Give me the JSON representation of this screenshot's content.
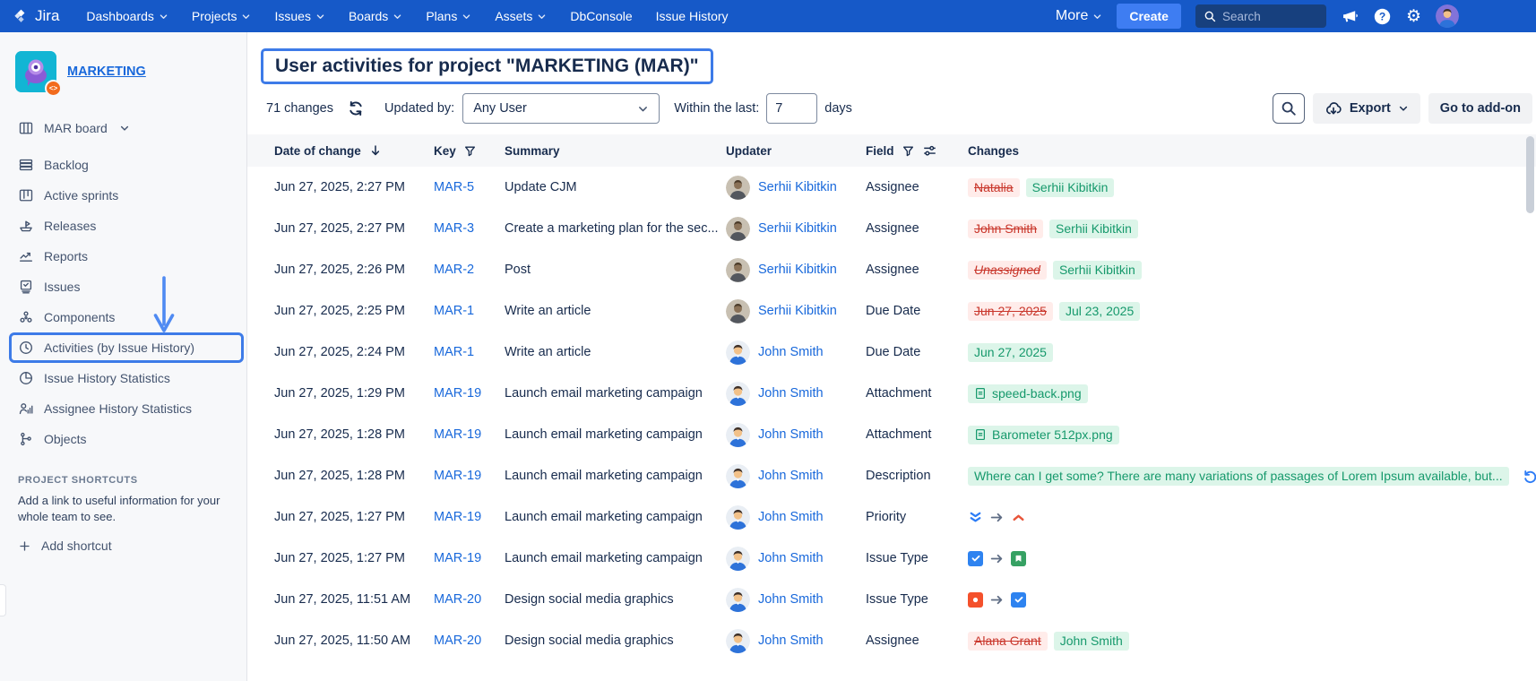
{
  "colors": {
    "navbar": "#1659C8",
    "create_button": "#3E7DF2",
    "link": "#1868DB",
    "annotation": "#3D7BE8",
    "removed_text": "#C9372C",
    "removed_bg": "#FFECEA",
    "added_text": "#16996C",
    "added_bg": "#DCF5E9",
    "issuetype_task": "#2E83F0",
    "issuetype_story": "#36A163",
    "issuetype_bug": "#F4512C",
    "priority_lowest": "#2C7CF6",
    "priority_high": "#E8553A"
  },
  "topnav": {
    "logo_label": "Jira",
    "items": [
      {
        "label": "Dashboards",
        "chevron": true
      },
      {
        "label": "Projects",
        "chevron": true
      },
      {
        "label": "Issues",
        "chevron": true
      },
      {
        "label": "Boards",
        "chevron": true
      },
      {
        "label": "Plans",
        "chevron": true
      },
      {
        "label": "Assets",
        "chevron": true
      },
      {
        "label": "DbConsole",
        "chevron": false
      },
      {
        "label": "Issue History",
        "chevron": false
      }
    ],
    "more_label": "More",
    "create_label": "Create",
    "search_placeholder": "Search"
  },
  "sidebar": {
    "project_name": "MARKETING",
    "items": [
      {
        "label": "MAR board",
        "icon": "board-icon",
        "chevron": true
      },
      {
        "label": "Backlog",
        "icon": "backlog-icon"
      },
      {
        "label": "Active sprints",
        "icon": "sprints-icon"
      },
      {
        "label": "Releases",
        "icon": "ship-icon"
      },
      {
        "label": "Reports",
        "icon": "chart-icon"
      },
      {
        "label": "Issues",
        "icon": "issues-icon"
      },
      {
        "label": "Components",
        "icon": "components-icon"
      },
      {
        "label": "Activities (by Issue History)",
        "icon": "history-icon",
        "active": true
      },
      {
        "label": "Issue History Statistics",
        "icon": "pie-icon"
      },
      {
        "label": "Assignee History Statistics",
        "icon": "people-stats-icon"
      },
      {
        "label": "Objects",
        "icon": "tree-icon"
      }
    ],
    "shortcuts_header": "PROJECT SHORTCUTS",
    "shortcuts_hint": "Add a link to useful information for your whole team to see.",
    "add_shortcut_label": "Add shortcut"
  },
  "header": {
    "title": "User activities for project \"MARKETING (MAR)\""
  },
  "filters": {
    "changes_count": "71 changes",
    "updated_by_label": "Updated by:",
    "updated_by_value": "Any User",
    "within_label": "Within the last:",
    "within_value": "7",
    "days_label": "days",
    "export_label": "Export",
    "goto_addon_label": "Go to add-on"
  },
  "table": {
    "columns": [
      "Date of change",
      "Key",
      "Summary",
      "Updater",
      "Field",
      "Changes"
    ],
    "rows": [
      {
        "date": "Jun 27, 2025, 2:27 PM",
        "key": "MAR-5",
        "summary": "Update CJM",
        "updater": "Serhii Kibitkin",
        "avatar": "photo",
        "field": "Assignee",
        "change": {
          "type": "update",
          "old": "Natalia",
          "new": "Serhii Kibitkin"
        }
      },
      {
        "date": "Jun 27, 2025, 2:27 PM",
        "key": "MAR-3",
        "summary": "Create a marketing plan for the sec...",
        "updater": "Serhii Kibitkin",
        "avatar": "photo",
        "field": "Assignee",
        "change": {
          "type": "update",
          "old": "John Smith",
          "new": "Serhii Kibitkin"
        }
      },
      {
        "date": "Jun 27, 2025, 2:26 PM",
        "key": "MAR-2",
        "summary": "Post",
        "updater": "Serhii Kibitkin",
        "avatar": "photo",
        "field": "Assignee",
        "change": {
          "type": "update",
          "old": "Unassigned",
          "old_italic": true,
          "new": "Serhii Kibitkin"
        }
      },
      {
        "date": "Jun 27, 2025, 2:25 PM",
        "key": "MAR-1",
        "summary": "Write an article",
        "updater": "Serhii Kibitkin",
        "avatar": "photo",
        "field": "Due Date",
        "change": {
          "type": "update",
          "old": "Jun 27, 2025",
          "new": "Jul 23, 2025"
        }
      },
      {
        "date": "Jun 27, 2025, 2:24 PM",
        "key": "MAR-1",
        "summary": "Write an article",
        "updater": "John Smith",
        "avatar": "cartoon",
        "field": "Due Date",
        "change": {
          "type": "added",
          "new": "Jun 27, 2025"
        }
      },
      {
        "date": "Jun 27, 2025, 1:29 PM",
        "key": "MAR-19",
        "summary": "Launch email marketing campaign",
        "updater": "John Smith",
        "avatar": "cartoon",
        "field": "Attachment",
        "change": {
          "type": "attachment",
          "new": "speed-back.png"
        }
      },
      {
        "date": "Jun 27, 2025, 1:28 PM",
        "key": "MAR-19",
        "summary": "Launch email marketing campaign",
        "updater": "John Smith",
        "avatar": "cartoon",
        "field": "Attachment",
        "change": {
          "type": "attachment",
          "new": "Barometer 512px.png"
        }
      },
      {
        "date": "Jun 27, 2025, 1:28 PM",
        "key": "MAR-19",
        "summary": "Launch email marketing campaign",
        "updater": "John Smith",
        "avatar": "cartoon",
        "field": "Description",
        "change": {
          "type": "description",
          "new": "Where can I get some? There are many variations of passages of Lorem Ipsum available, but...",
          "icon": "revert-icon"
        }
      },
      {
        "date": "Jun 27, 2025, 1:27 PM",
        "key": "MAR-19",
        "summary": "Launch email marketing campaign",
        "updater": "John Smith",
        "avatar": "cartoon",
        "field": "Priority",
        "change": {
          "type": "icons",
          "from": "priority-lowest",
          "to": "priority-high"
        }
      },
      {
        "date": "Jun 27, 2025, 1:27 PM",
        "key": "MAR-19",
        "summary": "Launch email marketing campaign",
        "updater": "John Smith",
        "avatar": "cartoon",
        "field": "Issue Type",
        "change": {
          "type": "icons",
          "from": "issuetype-task",
          "to": "issuetype-story"
        }
      },
      {
        "date": "Jun 27, 2025, 11:51 AM",
        "key": "MAR-20",
        "summary": "Design social media graphics",
        "updater": "John Smith",
        "avatar": "cartoon",
        "field": "Issue Type",
        "change": {
          "type": "icons",
          "from": "issuetype-bug",
          "to": "issuetype-task"
        }
      },
      {
        "date": "Jun 27, 2025, 11:50 AM",
        "key": "MAR-20",
        "summary": "Design social media graphics",
        "updater": "John Smith",
        "avatar": "cartoon",
        "field": "Assignee",
        "change": {
          "type": "update",
          "old": "Alana Grant",
          "new": "John Smith"
        }
      }
    ]
  }
}
